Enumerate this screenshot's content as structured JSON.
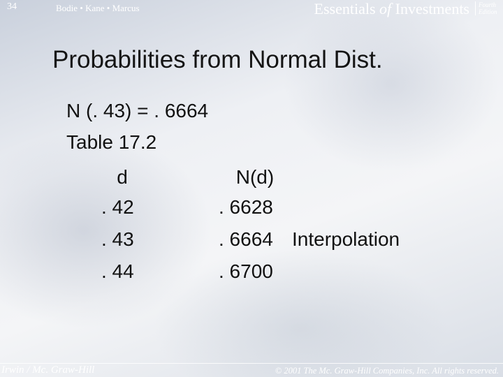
{
  "header": {
    "slide_number": "34",
    "authors": "Bodie • Kane • Marcus",
    "book_title": [
      "Essentials",
      "of",
      "Investments"
    ],
    "edition": [
      "Fourth",
      "Edition"
    ]
  },
  "title": "Probabilities from Normal Dist.",
  "lines": [
    "N (. 43) = . 6664",
    "Table 17.2"
  ],
  "table": {
    "header": [
      "d",
      "N(d)"
    ],
    "rows": [
      [
        ". 42",
        ". 6628"
      ],
      [
        ". 43",
        ". 6664",
        "Interpolation"
      ],
      [
        ". 44",
        ". 6700"
      ]
    ]
  },
  "footer": {
    "publisher": "Irwin / Mc. Graw-Hill",
    "copyright": "© 2001 The Mc. Graw-Hill Companies, Inc. All rights reserved."
  }
}
